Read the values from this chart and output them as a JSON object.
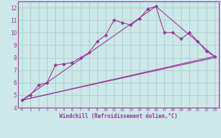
{
  "background_color": "#cce8e8",
  "grid_color": "#aacccc",
  "line_color": "#993399",
  "xlabel": "Windchill (Refroidissement éolien,°C)",
  "ylim": [
    4,
    12.5
  ],
  "xlim": [
    -0.5,
    23.5
  ],
  "yticks": [
    4,
    5,
    6,
    7,
    8,
    9,
    10,
    11,
    12
  ],
  "xticks": [
    0,
    1,
    2,
    3,
    4,
    5,
    6,
    7,
    8,
    9,
    10,
    11,
    12,
    13,
    14,
    15,
    16,
    17,
    18,
    19,
    20,
    21,
    22,
    23
  ],
  "line1_x": [
    0,
    1,
    2,
    3,
    4,
    5,
    6,
    7,
    8,
    9,
    10,
    11,
    12,
    13,
    14,
    15,
    16,
    17,
    18,
    19,
    20,
    21,
    22,
    23
  ],
  "line1_y": [
    4.6,
    5.0,
    5.8,
    6.0,
    7.4,
    7.5,
    7.6,
    8.0,
    8.4,
    9.3,
    9.8,
    11.0,
    10.8,
    10.6,
    11.1,
    11.9,
    12.1,
    10.0,
    10.0,
    9.5,
    10.0,
    9.3,
    8.5,
    8.1
  ],
  "line2_x": [
    0,
    23
  ],
  "line2_y": [
    4.6,
    8.1
  ],
  "line3_x": [
    0,
    16,
    23
  ],
  "line3_y": [
    4.6,
    12.1,
    8.1
  ],
  "line4_x": [
    0,
    23
  ],
  "line4_y": [
    4.6,
    8.0
  ]
}
